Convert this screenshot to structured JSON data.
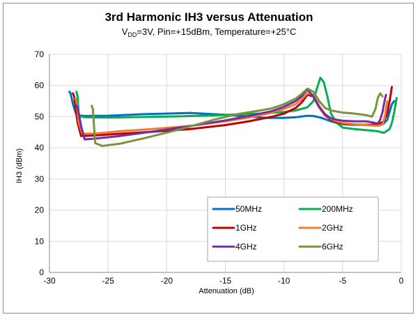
{
  "chart_data": {
    "type": "line",
    "title": "3rd Harmonic IH3 versus Attenuation",
    "subtitle": {
      "prefix": "V",
      "subscript": "DD",
      "rest": "=3V, Pin=+15dBm, Temperature=+25°C"
    },
    "xlabel": "Attenuation (dB)",
    "ylabel": "IH3 (dBm)",
    "xlim": [
      -30,
      0
    ],
    "ylim": [
      0,
      70
    ],
    "xticks": [
      -30,
      -25,
      -20,
      -15,
      -10,
      -5,
      0
    ],
    "yticks": [
      0,
      10,
      20,
      30,
      40,
      50,
      60,
      70
    ],
    "grid": true,
    "legend_position": "inside-lower-right",
    "series": [
      {
        "name": "50MHz",
        "color": "#0070c0",
        "x": [
          -28.3,
          -28.2,
          -28.0,
          -27.7,
          -27.0,
          -25.0,
          -22.0,
          -18.0,
          -15.0,
          -13.0,
          -11.5,
          -10.0,
          -9.0,
          -8.0,
          -7.5,
          -7.0,
          -6.5,
          -6.0,
          -5.5,
          -5.0,
          -4.0,
          -3.0,
          -2.0,
          -1.5,
          -1.2,
          -1.0,
          -0.8,
          -0.6
        ],
        "y": [
          58.0,
          57.5,
          54.0,
          50.5,
          50.2,
          50.3,
          50.8,
          51.2,
          50.6,
          50.0,
          49.6,
          49.6,
          49.8,
          50.3,
          50.2,
          49.8,
          49.2,
          48.5,
          48.0,
          47.6,
          47.4,
          47.4,
          47.5,
          47.8,
          49.0,
          51.5,
          54.0,
          55.0
        ]
      },
      {
        "name": "200MHz",
        "color": "#00b050",
        "x": [
          -27.7,
          -27.6,
          -27.5,
          -27.0,
          -25.0,
          -22.0,
          -19.0,
          -16.0,
          -14.0,
          -12.0,
          -10.0,
          -9.0,
          -8.0,
          -7.5,
          -7.2,
          -6.9,
          -6.6,
          -6.3,
          -6.0,
          -5.5,
          -5.0,
          -4.0,
          -3.0,
          -2.0,
          -1.5,
          -1.0,
          -0.8,
          -0.6,
          -0.4
        ],
        "y": [
          58.0,
          56.5,
          50.2,
          49.8,
          49.7,
          49.9,
          50.1,
          50.4,
          50.7,
          51.0,
          51.5,
          52.0,
          53.0,
          55.0,
          59.0,
          62.5,
          61.0,
          56.5,
          51.0,
          48.0,
          46.5,
          46.0,
          45.7,
          45.3,
          44.8,
          46.0,
          48.0,
          51.5,
          56.0
        ]
      },
      {
        "name": "1GHz",
        "color": "#c00000",
        "x": [
          -28.0,
          -27.9,
          -27.6,
          -27.3,
          -26.0,
          -24.0,
          -21.0,
          -18.0,
          -15.0,
          -13.0,
          -11.0,
          -10.0,
          -9.0,
          -8.5,
          -8.0,
          -7.5,
          -7.0,
          -6.5,
          -6.0,
          -5.5,
          -5.0,
          -4.0,
          -3.0,
          -2.0,
          -1.5,
          -1.2,
          -1.0,
          -0.8
        ],
        "y": [
          57.5,
          56.5,
          48.0,
          43.8,
          44.0,
          44.5,
          45.2,
          46.0,
          47.3,
          48.5,
          50.0,
          51.0,
          52.8,
          54.5,
          57.0,
          56.5,
          53.0,
          50.5,
          49.0,
          48.2,
          47.8,
          47.5,
          47.4,
          47.4,
          48.5,
          51.0,
          55.0,
          59.5
        ]
      },
      {
        "name": "2GHz",
        "color": "#ed7d31",
        "x": [
          -27.8,
          -27.7,
          -27.5,
          -27.2,
          -26.0,
          -24.0,
          -21.0,
          -18.0,
          -15.0,
          -13.0,
          -11.0,
          -10.0,
          -9.0,
          -8.5,
          -8.0,
          -7.5,
          -7.0,
          -6.5,
          -6.0,
          -5.5,
          -5.0,
          -4.0,
          -3.0,
          -2.0,
          -1.6,
          -1.4,
          -1.2
        ],
        "y": [
          56.0,
          55.0,
          48.0,
          44.5,
          44.6,
          45.3,
          46.1,
          47.0,
          48.5,
          49.7,
          51.3,
          52.5,
          54.0,
          55.5,
          57.5,
          57.0,
          53.5,
          50.8,
          49.3,
          48.5,
          48.0,
          47.6,
          47.3,
          47.0,
          47.5,
          50.0,
          55.0
        ]
      },
      {
        "name": "4GHz",
        "color": "#7030a0",
        "x": [
          -27.8,
          -27.6,
          -27.3,
          -27.0,
          -26.0,
          -24.0,
          -21.0,
          -18.0,
          -15.0,
          -13.0,
          -11.0,
          -10.0,
          -9.0,
          -8.5,
          -8.0,
          -7.5,
          -7.0,
          -6.5,
          -6.0,
          -5.5,
          -5.0,
          -4.0,
          -3.0,
          -2.5,
          -2.0,
          -1.8,
          -1.6,
          -1.4,
          -1.3
        ],
        "y": [
          54.0,
          53.0,
          47.0,
          42.7,
          43.0,
          43.8,
          45.3,
          47.0,
          48.8,
          50.2,
          51.8,
          53.2,
          55.0,
          56.5,
          58.7,
          56.5,
          53.0,
          50.8,
          49.5,
          49.0,
          48.7,
          48.5,
          48.5,
          48.2,
          47.8,
          49.0,
          51.5,
          55.5,
          57.0
        ]
      },
      {
        "name": "6GHz",
        "color": "#77933c",
        "x": [
          -26.4,
          -26.3,
          -26.1,
          -25.5,
          -24.0,
          -22.0,
          -19.0,
          -16.0,
          -14.0,
          -12.0,
          -11.0,
          -10.0,
          -9.0,
          -8.5,
          -8.0,
          -7.5,
          -7.0,
          -6.5,
          -6.0,
          -5.0,
          -4.0,
          -3.0,
          -2.5,
          -2.2,
          -2.0,
          -1.8,
          -1.6
        ],
        "y": [
          53.5,
          52.5,
          41.5,
          40.6,
          41.3,
          43.0,
          45.8,
          49.0,
          50.8,
          52.0,
          52.7,
          54.0,
          55.8,
          57.3,
          59.0,
          58.0,
          55.0,
          52.8,
          52.0,
          51.3,
          51.0,
          50.5,
          50.0,
          52.5,
          56.0,
          57.5,
          56.5
        ]
      }
    ]
  }
}
